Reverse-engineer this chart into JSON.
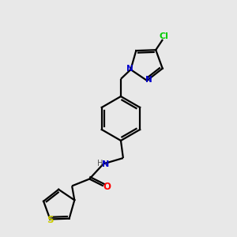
{
  "background_color": "#e8e8e8",
  "bond_color": "#000000",
  "atom_colors": {
    "N": "#0000cc",
    "N2": "#4a7a7a",
    "O": "#ff0000",
    "S": "#cccc00",
    "Cl": "#00cc00",
    "H": "#000000"
  },
  "figsize": [
    3.0,
    3.0
  ],
  "dpi": 100
}
